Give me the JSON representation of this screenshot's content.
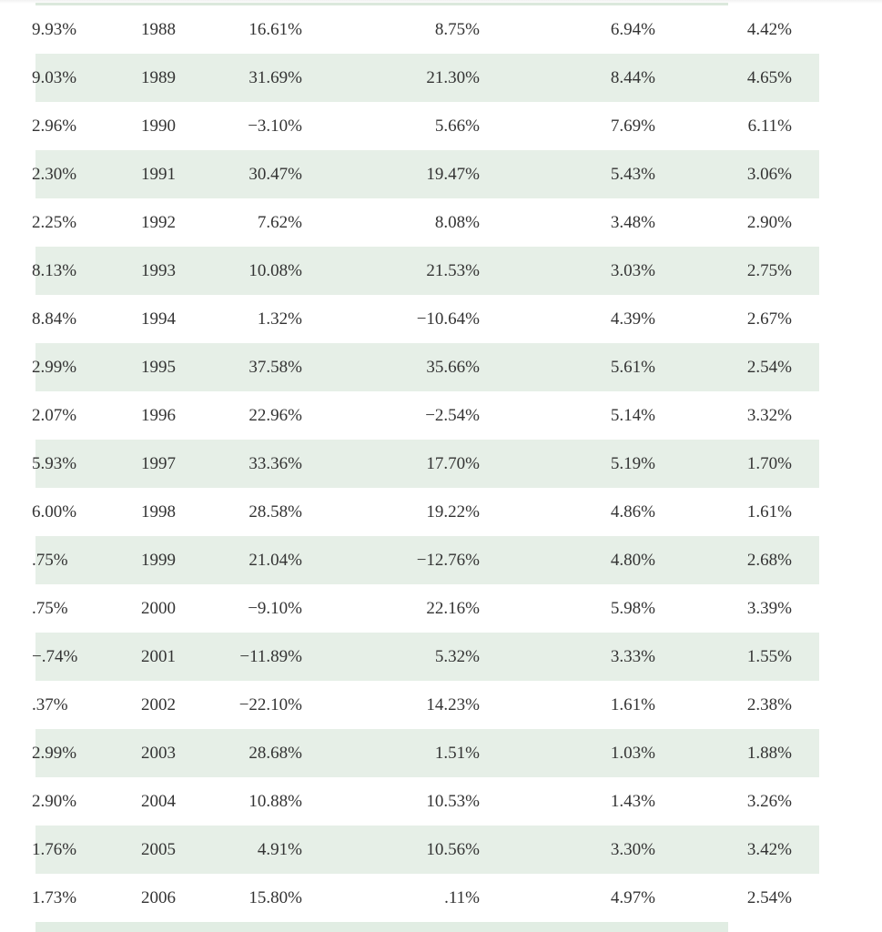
{
  "table": {
    "rows": [
      {
        "c0": "9.93%",
        "year": "1988",
        "c2": "16.61%",
        "c3": "8.75%",
        "c4": "6.94%",
        "c5": "4.42%"
      },
      {
        "c0": "9.03%",
        "year": "1989",
        "c2": "31.69%",
        "c3": "21.30%",
        "c4": "8.44%",
        "c5": "4.65%"
      },
      {
        "c0": "2.96%",
        "year": "1990",
        "c2": "−3.10%",
        "c3": "5.66%",
        "c4": "7.69%",
        "c5": "6.11%"
      },
      {
        "c0": "2.30%",
        "year": "1991",
        "c2": "30.47%",
        "c3": "19.47%",
        "c4": "5.43%",
        "c5": "3.06%"
      },
      {
        "c0": "2.25%",
        "year": "1992",
        "c2": "7.62%",
        "c3": "8.08%",
        "c4": "3.48%",
        "c5": "2.90%"
      },
      {
        "c0": "8.13%",
        "year": "1993",
        "c2": "10.08%",
        "c3": "21.53%",
        "c4": "3.03%",
        "c5": "2.75%"
      },
      {
        "c0": "8.84%",
        "year": "1994",
        "c2": "1.32%",
        "c3": "−10.64%",
        "c4": "4.39%",
        "c5": "2.67%"
      },
      {
        "c0": "2.99%",
        "year": "1995",
        "c2": "37.58%",
        "c3": "35.66%",
        "c4": "5.61%",
        "c5": "2.54%"
      },
      {
        "c0": "2.07%",
        "year": "1996",
        "c2": "22.96%",
        "c3": "−2.54%",
        "c4": "5.14%",
        "c5": "3.32%"
      },
      {
        "c0": "5.93%",
        "year": "1997",
        "c2": "33.36%",
        "c3": "17.70%",
        "c4": "5.19%",
        "c5": "1.70%"
      },
      {
        "c0": "6.00%",
        "year": "1998",
        "c2": "28.58%",
        "c3": "19.22%",
        "c4": "4.86%",
        "c5": "1.61%"
      },
      {
        "c0": ".75%",
        "year": "1999",
        "c2": "21.04%",
        "c3": "−12.76%",
        "c4": "4.80%",
        "c5": "2.68%"
      },
      {
        "c0": ".75%",
        "year": "2000",
        "c2": "−9.10%",
        "c3": "22.16%",
        "c4": "5.98%",
        "c5": "3.39%"
      },
      {
        "c0": "−.74%",
        "year": "2001",
        "c2": "−11.89%",
        "c3": "5.32%",
        "c4": "3.33%",
        "c5": "1.55%"
      },
      {
        "c0": ".37%",
        "year": "2002",
        "c2": "−22.10%",
        "c3": "14.23%",
        "c4": "1.61%",
        "c5": "2.38%"
      },
      {
        "c0": "2.99%",
        "year": "2003",
        "c2": "28.68%",
        "c3": "1.51%",
        "c4": "1.03%",
        "c5": "1.88%"
      },
      {
        "c0": "2.90%",
        "year": "2004",
        "c2": "10.88%",
        "c3": "10.53%",
        "c4": "1.43%",
        "c5": "3.26%"
      },
      {
        "c0": "1.76%",
        "year": "2005",
        "c2": "4.91%",
        "c3": "10.56%",
        "c4": "3.30%",
        "c5": "3.42%"
      },
      {
        "c0": "1.73%",
        "year": "2006",
        "c2": "15.80%",
        "c3": ".11%",
        "c4": "4.97%",
        "c5": "2.54%"
      }
    ]
  },
  "colors": {
    "row_shade": "#e6efe7",
    "text": "#333333"
  }
}
